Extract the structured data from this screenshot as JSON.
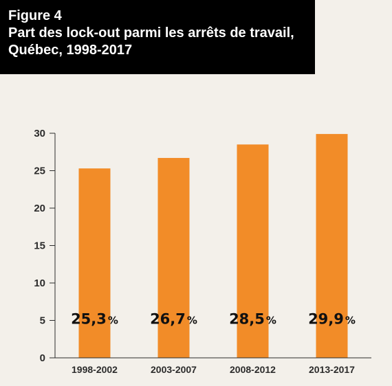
{
  "header": {
    "figure_label": "Figure 4",
    "title": "Part des lock-out parmi les arrêts de travail, Québec, 1998-2017"
  },
  "chart_data": {
    "type": "bar",
    "categories": [
      "1998-2002",
      "2003-2007",
      "2008-2012",
      "2013-2017"
    ],
    "values": [
      25.3,
      26.7,
      28.5,
      29.9
    ],
    "data_labels": [
      "25,3",
      "26,7",
      "28,5",
      "29,9"
    ],
    "data_label_unit": "%",
    "yticks": [
      0,
      5,
      10,
      15,
      20,
      25,
      30
    ],
    "ylim": [
      0,
      30
    ],
    "grid": false,
    "bar_color": "#f28c28"
  }
}
